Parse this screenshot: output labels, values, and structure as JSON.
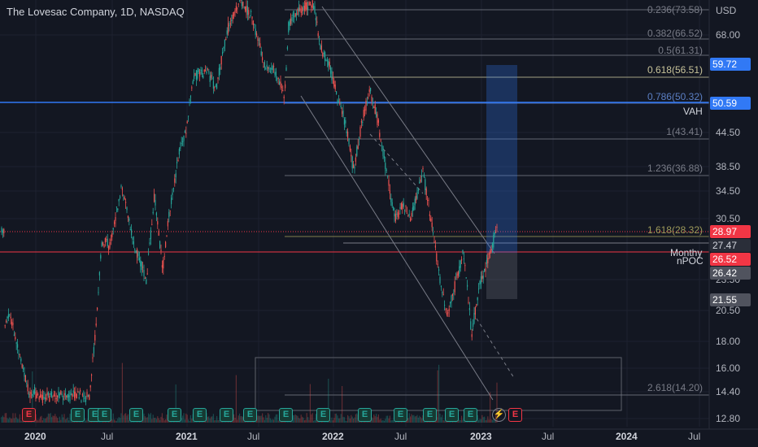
{
  "header": {
    "title": "The Lovesac Company, 1D, NASDAQ",
    "currency": "USD"
  },
  "colors": {
    "up": "#26a69a",
    "down": "#ef5350",
    "bg": "#131722",
    "grid": "#1e2230",
    "fib": "#787b86",
    "fib_gold": "#9e9a5a",
    "blue": "#3179f5",
    "red": "#f23645",
    "gray": "#787b86"
  },
  "price_axis": {
    "ticks": [
      "68.00",
      "44.50",
      "38.50",
      "34.50",
      "30.50",
      "23.50",
      "20.50",
      "18.00",
      "16.00",
      "14.40",
      "12.80"
    ]
  },
  "time_axis": {
    "ticks": [
      "2020",
      "Jul",
      "2021",
      "Jul",
      "2022",
      "Jul",
      "2023",
      "Jul",
      "2024",
      "Jul"
    ]
  },
  "badges": [
    {
      "text": "59.72",
      "bg": "#3179f5",
      "fg": "#ffffff"
    },
    {
      "text": "50.59",
      "bg": "#3179f5",
      "fg": "#ffffff"
    },
    {
      "text": "28.97",
      "bg": "#f23645",
      "fg": "#ffffff"
    },
    {
      "text": "27.47",
      "bg": "#2a2e39",
      "fg": "#d1d4dc"
    },
    {
      "text": "26.52",
      "bg": "#f23645",
      "fg": "#ffffff"
    },
    {
      "text": "26.42",
      "bg": "#50535e",
      "fg": "#ffffff"
    },
    {
      "text": "21.55",
      "bg": "#50535e",
      "fg": "#ffffff"
    }
  ],
  "side_labels": {
    "vah": "VAH",
    "monthly": "Monthy",
    "npoc": "nPOC"
  },
  "fib_levels": [
    {
      "label": "0.236(73.58)",
      "color": "#787b86"
    },
    {
      "label": "0.382(66.52)",
      "color": "#787b86"
    },
    {
      "label": "0.5(61.31)",
      "color": "#787b86"
    },
    {
      "label": "0.618(56.51)",
      "color": "#c8c39a"
    },
    {
      "label": "0.786(50.32)",
      "color": "#5b7fc4"
    },
    {
      "label": "1(43.41)",
      "color": "#787b86"
    },
    {
      "label": "1.236(36.88)",
      "color": "#787b86"
    },
    {
      "label": "1.618(28.32)",
      "color": "#9e9a5a"
    },
    {
      "label": "2.618(14.20)",
      "color": "#787b86"
    }
  ],
  "events": [
    "E",
    "E",
    "E",
    "E",
    "E",
    "E",
    "E",
    "E",
    "E",
    "E",
    "E",
    "E",
    "E",
    "E",
    "E",
    "E",
    "E",
    "E"
  ],
  "events_icons": {
    "lightning": "lightning-icon",
    "earnings": "E"
  }
}
